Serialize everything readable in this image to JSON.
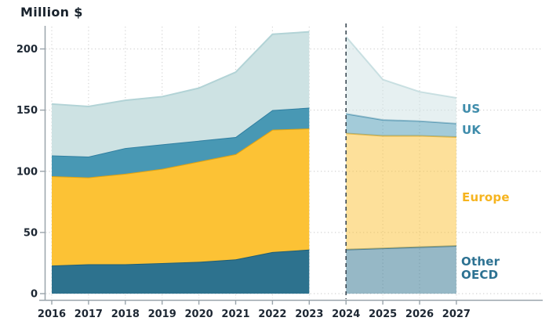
{
  "title": "Million $",
  "chart_data": {
    "type": "area",
    "stacked": true,
    "title": "Million $",
    "ylabel": "Million $",
    "ylim": [
      0,
      220
    ],
    "yticks": [
      0,
      50,
      100,
      150,
      200
    ],
    "grid": "dotted",
    "divider_year": 2024,
    "divider_style": "dashed",
    "x_historical": [
      2016,
      2017,
      2018,
      2019,
      2020,
      2021,
      2022,
      2023
    ],
    "x_forecast": [
      2024,
      2025,
      2026,
      2027
    ],
    "series": [
      {
        "name": "Other OECD",
        "fill": "#2d728e",
        "stroke": "#1e5d75",
        "label_color": "#2d7292",
        "historical": [
          23,
          24,
          24,
          25,
          26,
          28,
          34,
          36
        ],
        "forecast": [
          36,
          37,
          38,
          39
        ]
      },
      {
        "name": "Europe",
        "fill": "#fcc235",
        "stroke": "#e2a30f",
        "label_color": "#f6b41f",
        "historical": [
          73,
          71,
          74,
          77,
          82,
          86,
          100,
          99
        ],
        "forecast": [
          95,
          92,
          91,
          89
        ]
      },
      {
        "name": "UK",
        "fill": "#4898b4",
        "stroke": "#2f7ea0",
        "label_color": "#3e8cab",
        "historical": [
          17,
          17,
          21,
          20,
          17,
          14,
          16,
          17
        ],
        "forecast": [
          16,
          13,
          12,
          11
        ]
      },
      {
        "name": "US",
        "fill": "#cde2e3",
        "stroke": "#b2d3d6",
        "label_color": "#3e8cab",
        "historical": [
          42,
          41,
          39,
          39,
          43,
          53,
          62,
          62
        ],
        "forecast": [
          63,
          33,
          24,
          21
        ]
      }
    ],
    "colors": {
      "axis": "#9aa4ab",
      "grid": "#d4d4d4",
      "tick_text": "#1d2733",
      "divider": "#3c4b55",
      "background": "#ffffff"
    },
    "forecast_fill_opacity": 0.5
  }
}
